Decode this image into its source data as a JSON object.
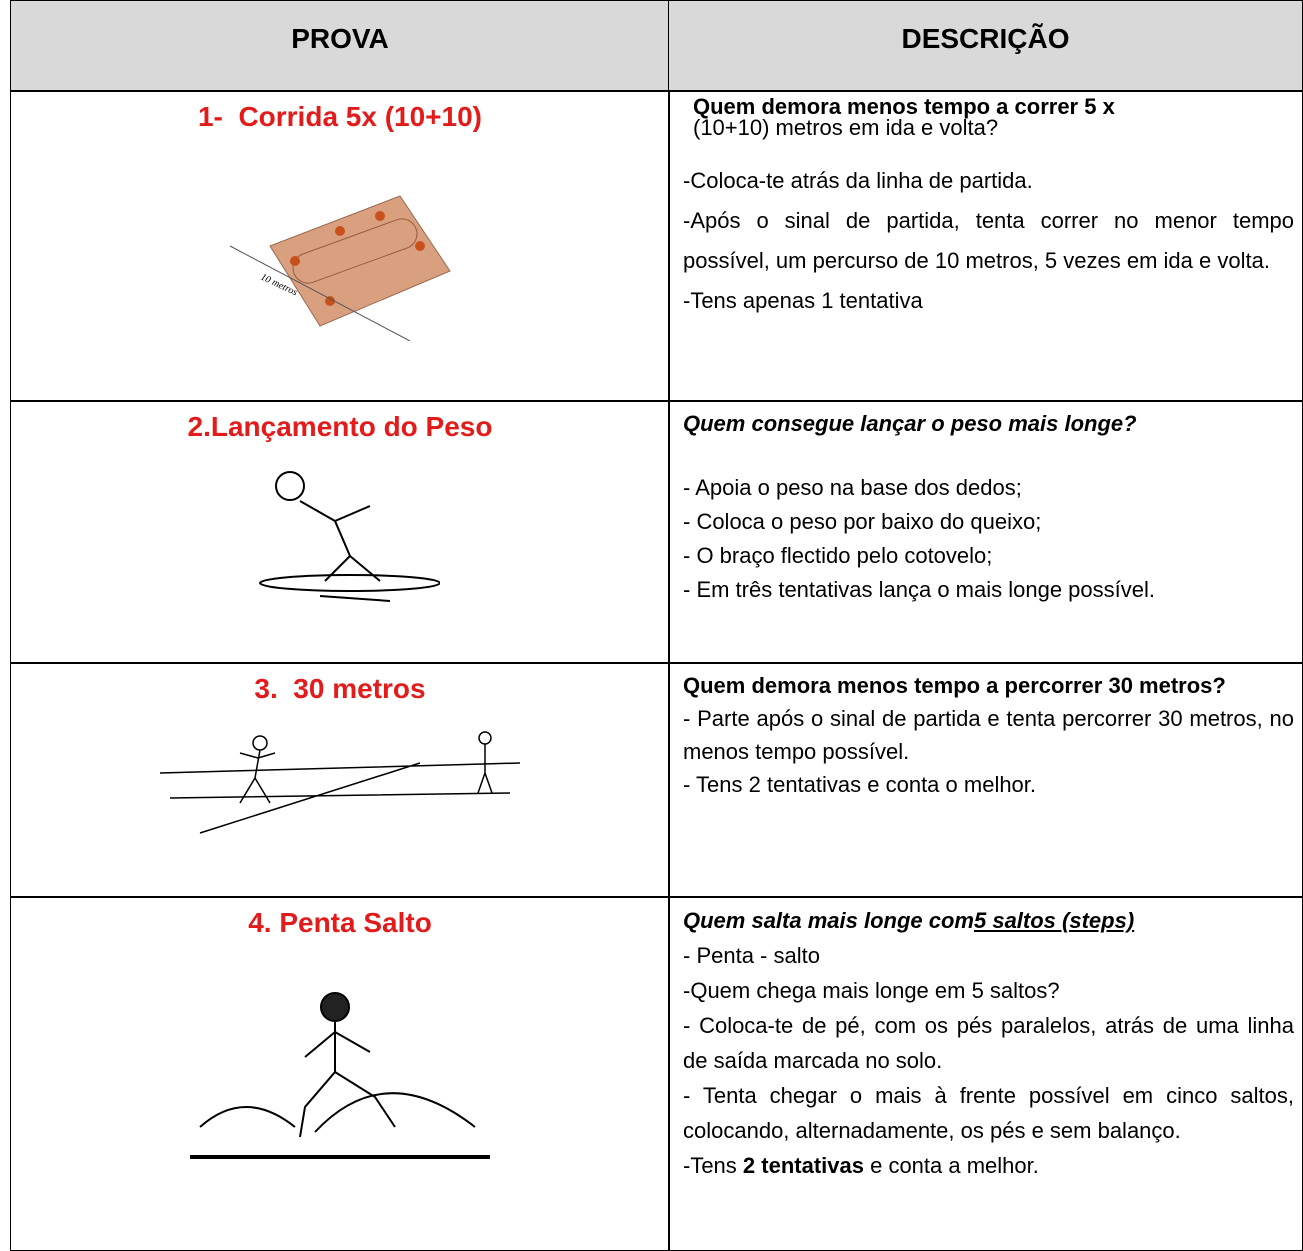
{
  "header": {
    "col1": "PROVA",
    "col2": "DESCRIÇÃO"
  },
  "rows": [
    {
      "title": "1-  Corrida 5x (10+10)",
      "figure_label": "10 metros",
      "question": [
        "Quem demora menos tempo a correr 5 x",
        "(10+10) metros em ida e volta?"
      ],
      "paragraphs": [
        "-Coloca-te atrás da linha de partida.",
        "-Após o sinal de partida, tenta correr no menor tempo possível, um percurso de 10 metros, 5 vezes em ida e volta.",
        "-Tens apenas 1 tentativa"
      ]
    },
    {
      "title": "2.Lançamento do Peso",
      "question": [
        "Quem consegue lançar o peso mais longe?"
      ],
      "paragraphs": [
        "- Apoia o peso na base dos dedos;",
        "- Coloca o peso por baixo do queixo;",
        "- O braço flectido pelo cotovelo;",
        "- Em três tentativas lança o mais longe possível."
      ]
    },
    {
      "title": "3.  30 metros",
      "question": [
        "Quem demora menos tempo a percorrer 30 metros?"
      ],
      "paragraphs": [
        "- Parte após o sinal de partida e tenta percorrer 30 metros, no menos tempo possível.",
        "- Tens 2 tentativas e conta o melhor."
      ]
    },
    {
      "title": "4. Penta Salto",
      "question": [
        "Quem salta mais longe com",
        "5 saltos (steps)"
      ],
      "paragraphs": [
        "- Penta - salto",
        "-Quem chega mais longe em 5 saltos?",
        "- Coloca-te de pé, com os pés paralelos, atrás de uma linha de saída marcada no solo.",
        "- Tenta chegar o mais à frente possível em cinco saltos, colocando, alternadamente, os pés e sem balanço."
      ],
      "last_line": [
        "-Tens ",
        "2 tentativas",
        " e conta a melhor."
      ]
    }
  ]
}
